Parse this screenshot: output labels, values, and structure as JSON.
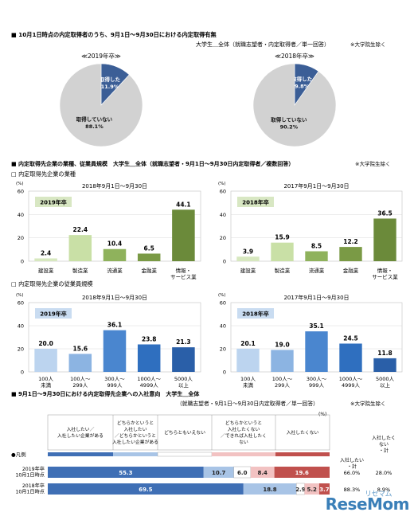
{
  "section1": {
    "title": "■ 10月1日時点の内定取得者のうち、9月1日～9月30日における内定取得有無",
    "subtitle": "大学生＿全体（就職志望者・内定取得者／単一回答）",
    "note": "※大学院生除く",
    "pies": [
      {
        "year_label": "≪2019年卒≫",
        "slices": [
          {
            "label": "取得した",
            "value": "11.9%"
          },
          {
            "label": "取得していない",
            "value": "88.1%"
          }
        ]
      },
      {
        "year_label": "≪2018年卒≫",
        "slices": [
          {
            "label": "取得した",
            "value": "9.8%"
          },
          {
            "label": "取得していない",
            "value": "90.2%"
          }
        ]
      }
    ]
  },
  "section2": {
    "title": "■ 内定取得先企業の業種、従業員規模　大学生＿全体（就職志望者・9月1日～9月30日内定取得者／複数回答）",
    "note": "※大学院生除く",
    "industry_heading": "□ 内定取得先企業の業種",
    "size_heading": "□ 内定取得先企業の従業員規模"
  },
  "section3": {
    "title": "■ 9月1日～9月30日における内定取得先企業への入社意向　大学生＿全体",
    "subtitle": "（就職志望者・9月1日～9月30日内定取得者／単一回答）",
    "note": "※大学院生除く",
    "pct": "(%)",
    "legend_label": "●凡例",
    "col_headers": [
      "入社したい／入社したい企業がある",
      "どちらかというと入社したい／どちらかというと入社したい企業がある",
      "どちらともいえない",
      "どちらかというと入社したくない／できれば入社したくない",
      "入社したくない"
    ],
    "total_headers": [
      "入社したい・計",
      "入社したくない・計"
    ]
  },
  "watermark": "ReseMom",
  "watermark_small": "リセマム",
  "colors": {
    "pie_taken": "#3b5e96",
    "pie_not": "#d2d2d2",
    "green_dark": "#6b8a3a",
    "green_light": "#c9e0a6",
    "blue_dark": "#2b6cb8",
    "blue_light": "#a9c8ea"
  },
  "chart_data": [
    {
      "type": "pie",
      "title": "≪2019年卒≫",
      "categories": [
        "取得した",
        "取得していない"
      ],
      "values": [
        11.9,
        88.1
      ]
    },
    {
      "type": "pie",
      "title": "≪2018年卒≫",
      "categories": [
        "取得した",
        "取得していない"
      ],
      "values": [
        9.8,
        90.2
      ]
    },
    {
      "type": "bar",
      "title": "2018年9月1日～9月30日",
      "badge": "2019年卒",
      "ylabel": "(%)",
      "ylim": [
        0,
        60
      ],
      "yticks": [
        0,
        20,
        40,
        60
      ],
      "categories": [
        "建設業",
        "製造業",
        "流通業",
        "金融業",
        "情報・サービス業"
      ],
      "values": [
        2.4,
        22.4,
        10.4,
        6.5,
        44.1
      ],
      "value_labels": [
        "2.4",
        "22.4",
        "10.4",
        "6.5",
        "44.1"
      ]
    },
    {
      "type": "bar",
      "title": "2017年9月1日～9月30日",
      "badge": "2018年卒",
      "ylabel": "(%)",
      "ylim": [
        0,
        60
      ],
      "yticks": [
        0,
        20,
        40,
        60
      ],
      "categories": [
        "建設業",
        "製造業",
        "流通業",
        "金融業",
        "情報・サービス業"
      ],
      "values": [
        3.9,
        15.9,
        8.5,
        12.2,
        36.5
      ],
      "value_labels": [
        "3.9",
        "15.9",
        "8.5",
        "12.2",
        "36.5"
      ]
    },
    {
      "type": "bar",
      "title": "2018年9月1日～9月30日",
      "badge": "2019年卒",
      "ylabel": "(%)",
      "ylim": [
        0,
        60
      ],
      "yticks": [
        0,
        20,
        40,
        60
      ],
      "categories": [
        "100人未満",
        "100人～299人",
        "300人～999人",
        "1000人～4999人",
        "5000人以上"
      ],
      "values": [
        20.0,
        15.6,
        36.1,
        23.8,
        21.3
      ],
      "value_labels": [
        "20.0",
        "15.6",
        "36.1",
        "23.8",
        "21.3"
      ]
    },
    {
      "type": "bar",
      "title": "2017年9月1日～9月30日",
      "badge": "2018年卒",
      "ylabel": "(%)",
      "ylim": [
        0,
        60
      ],
      "yticks": [
        0,
        20,
        40,
        60
      ],
      "categories": [
        "100人未満",
        "100人～299人",
        "300人～999人",
        "1000人～4999人",
        "5000人以上"
      ],
      "values": [
        20.1,
        19.0,
        35.1,
        24.5,
        11.8
      ],
      "value_labels": [
        "20.1",
        "19.0",
        "35.1",
        "24.5",
        "11.8"
      ]
    },
    {
      "type": "bar",
      "stacked": true,
      "horizontal": true,
      "categories": [
        "2019年卒\n10月1日時点",
        "2018年卒\n10月1日時点"
      ],
      "series": [
        {
          "name": "入社したい／入社したい企業がある",
          "values": [
            55.3,
            69.5
          ],
          "labels": [
            "55.3",
            "69.5"
          ]
        },
        {
          "name": "どちらかというと入社したい",
          "values": [
            10.7,
            18.8
          ],
          "labels": [
            "10.7",
            "18.8"
          ]
        },
        {
          "name": "どちらともいえない",
          "values": [
            6.0,
            2.9
          ],
          "labels": [
            "6.0",
            "2.9"
          ]
        },
        {
          "name": "どちらかというと入社したくない",
          "values": [
            8.4,
            5.2
          ],
          "labels": [
            "8.4",
            "5.2"
          ]
        },
        {
          "name": "入社したくない",
          "values": [
            19.6,
            3.7
          ],
          "labels": [
            "19.6",
            "3.7"
          ]
        }
      ],
      "totals_want": [
        "66.0%",
        "88.3%"
      ],
      "totals_not": [
        "28.0%",
        "8.9%"
      ]
    }
  ]
}
